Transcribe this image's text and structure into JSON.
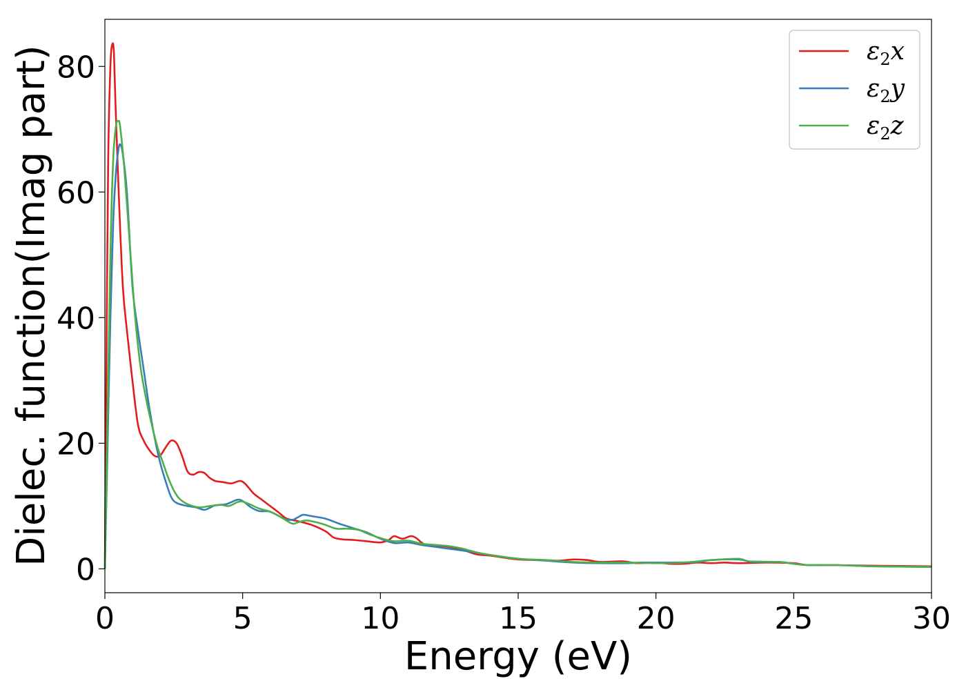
{
  "chart_data": {
    "type": "line",
    "xlabel": "Energy (eV)",
    "ylabel": "Dielec. function(Imag part)",
    "xlim": [
      0,
      30
    ],
    "ylim": [
      -3.8,
      87.5
    ],
    "xticks": [
      0,
      5,
      10,
      15,
      20,
      25,
      30
    ],
    "yticks": [
      0,
      20,
      40,
      60,
      80
    ],
    "grid": false,
    "legend_position": "top-right",
    "series": [
      {
        "name": "ε₂x",
        "legend_base": "ε",
        "legend_sub": "2",
        "legend_var": "x",
        "color": "#e41a1c",
        "points": [
          [
            0,
            0
          ],
          [
            0.05,
            30
          ],
          [
            0.12,
            65
          ],
          [
            0.2,
            80
          ],
          [
            0.27,
            83.5
          ],
          [
            0.33,
            82
          ],
          [
            0.4,
            72
          ],
          [
            0.5,
            60
          ],
          [
            0.65,
            45
          ],
          [
            0.8,
            38
          ],
          [
            1.0,
            30
          ],
          [
            1.2,
            23
          ],
          [
            1.4,
            20.5
          ],
          [
            1.6,
            19
          ],
          [
            1.8,
            18
          ],
          [
            2.0,
            18
          ],
          [
            2.2,
            19.3
          ],
          [
            2.4,
            20.4
          ],
          [
            2.6,
            20
          ],
          [
            2.8,
            18
          ],
          [
            3.0,
            15.5
          ],
          [
            3.2,
            15
          ],
          [
            3.4,
            15.4
          ],
          [
            3.6,
            15.3
          ],
          [
            3.8,
            14.5
          ],
          [
            4.0,
            14
          ],
          [
            4.3,
            13.8
          ],
          [
            4.6,
            13.6
          ],
          [
            4.9,
            14
          ],
          [
            5.1,
            13.5
          ],
          [
            5.4,
            12
          ],
          [
            5.7,
            11
          ],
          [
            6.0,
            10
          ],
          [
            6.3,
            9
          ],
          [
            6.6,
            8
          ],
          [
            7.0,
            7.6
          ],
          [
            7.5,
            7
          ],
          [
            8.0,
            6
          ],
          [
            8.3,
            5
          ],
          [
            8.6,
            4.7
          ],
          [
            9.0,
            4.6
          ],
          [
            9.5,
            4.4
          ],
          [
            10.0,
            4.2
          ],
          [
            10.3,
            4.6
          ],
          [
            10.5,
            5.2
          ],
          [
            10.8,
            4.8
          ],
          [
            11.1,
            5.2
          ],
          [
            11.3,
            4.9
          ],
          [
            11.6,
            3.9
          ],
          [
            12.0,
            3.7
          ],
          [
            12.5,
            3.5
          ],
          [
            13.0,
            3.0
          ],
          [
            13.5,
            2.3
          ],
          [
            14.0,
            2.1
          ],
          [
            15.0,
            1.5
          ],
          [
            16.0,
            1.4
          ],
          [
            16.5,
            1.3
          ],
          [
            17.0,
            1.5
          ],
          [
            17.5,
            1.4
          ],
          [
            18.0,
            1.1
          ],
          [
            18.8,
            1.2
          ],
          [
            19.3,
            0.9
          ],
          [
            20.0,
            1.0
          ],
          [
            20.5,
            0.8
          ],
          [
            21.0,
            0.8
          ],
          [
            21.5,
            1.0
          ],
          [
            22.0,
            0.9
          ],
          [
            22.5,
            1.0
          ],
          [
            23.0,
            0.9
          ],
          [
            24.0,
            1.0
          ],
          [
            25.0,
            0.9
          ],
          [
            25.5,
            0.6
          ],
          [
            26.5,
            0.6
          ],
          [
            28.0,
            0.5
          ],
          [
            30.0,
            0.4
          ]
        ]
      },
      {
        "name": "ε₂y",
        "legend_base": "ε",
        "legend_sub": "2",
        "legend_var": "y",
        "color": "#377eb8",
        "points": [
          [
            0,
            0
          ],
          [
            0.1,
            20
          ],
          [
            0.2,
            40
          ],
          [
            0.3,
            55
          ],
          [
            0.4,
            63
          ],
          [
            0.5,
            67
          ],
          [
            0.57,
            67.5
          ],
          [
            0.65,
            66
          ],
          [
            0.8,
            60
          ],
          [
            1.0,
            45
          ],
          [
            1.2,
            38
          ],
          [
            1.4,
            32
          ],
          [
            1.6,
            26
          ],
          [
            1.8,
            21
          ],
          [
            2.0,
            17
          ],
          [
            2.2,
            14
          ],
          [
            2.4,
            11.5
          ],
          [
            2.6,
            10.5
          ],
          [
            3.0,
            10
          ],
          [
            3.3,
            9.8
          ],
          [
            3.6,
            9.4
          ],
          [
            3.8,
            9.7
          ],
          [
            4.0,
            10.1
          ],
          [
            4.4,
            10.3
          ],
          [
            4.8,
            11
          ],
          [
            5.0,
            10.8
          ],
          [
            5.3,
            9.8
          ],
          [
            5.6,
            9.2
          ],
          [
            6.0,
            9.1
          ],
          [
            6.5,
            8
          ],
          [
            6.8,
            7.8
          ],
          [
            7.0,
            8.2
          ],
          [
            7.2,
            8.6
          ],
          [
            7.5,
            8.4
          ],
          [
            8.0,
            8.0
          ],
          [
            8.5,
            7.2
          ],
          [
            9.0,
            6.5
          ],
          [
            9.5,
            5.8
          ],
          [
            10.0,
            4.8
          ],
          [
            10.5,
            4.1
          ],
          [
            11.0,
            4.2
          ],
          [
            11.5,
            3.8
          ],
          [
            12.0,
            3.5
          ],
          [
            12.5,
            3.2
          ],
          [
            13.0,
            2.9
          ],
          [
            14.0,
            2.2
          ],
          [
            15.0,
            1.6
          ],
          [
            16.0,
            1.3
          ],
          [
            17.0,
            1.0
          ],
          [
            18.0,
            0.9
          ],
          [
            19.0,
            0.9
          ],
          [
            19.5,
            1.0
          ],
          [
            20.5,
            1.0
          ],
          [
            21.5,
            1.1
          ],
          [
            22.0,
            1.4
          ],
          [
            23.0,
            1.5
          ],
          [
            23.5,
            1.1
          ],
          [
            24.5,
            1.1
          ],
          [
            25.0,
            0.8
          ],
          [
            25.5,
            0.6
          ],
          [
            26.5,
            0.6
          ],
          [
            28.0,
            0.4
          ],
          [
            30.0,
            0.3
          ]
        ]
      },
      {
        "name": "ε₂z",
        "legend_base": "ε",
        "legend_sub": "2",
        "legend_var": "z",
        "color": "#4daf4a",
        "points": [
          [
            0,
            0
          ],
          [
            0.1,
            25
          ],
          [
            0.2,
            50
          ],
          [
            0.3,
            65
          ],
          [
            0.4,
            70.5
          ],
          [
            0.48,
            71.3
          ],
          [
            0.55,
            70.5
          ],
          [
            0.7,
            64
          ],
          [
            0.9,
            52
          ],
          [
            1.1,
            40
          ],
          [
            1.3,
            32
          ],
          [
            1.5,
            27
          ],
          [
            1.7,
            23
          ],
          [
            1.9,
            19.5
          ],
          [
            2.1,
            17
          ],
          [
            2.3,
            14.5
          ],
          [
            2.5,
            12.5
          ],
          [
            2.7,
            11.2
          ],
          [
            3.0,
            10.3
          ],
          [
            3.4,
            9.8
          ],
          [
            3.8,
            10
          ],
          [
            4.2,
            10.2
          ],
          [
            4.5,
            10
          ],
          [
            4.8,
            10.6
          ],
          [
            5.0,
            10.7
          ],
          [
            5.3,
            10.2
          ],
          [
            5.6,
            9.6
          ],
          [
            6.0,
            9.1
          ],
          [
            6.4,
            8.2
          ],
          [
            6.8,
            7.2
          ],
          [
            7.0,
            7.4
          ],
          [
            7.3,
            7.7
          ],
          [
            7.7,
            7.4
          ],
          [
            8.0,
            7.0
          ],
          [
            8.4,
            6.4
          ],
          [
            8.8,
            6.4
          ],
          [
            9.2,
            6.2
          ],
          [
            9.6,
            5.5
          ],
          [
            10.0,
            4.9
          ],
          [
            10.5,
            4.4
          ],
          [
            11.0,
            4.5
          ],
          [
            11.5,
            4.0
          ],
          [
            12.0,
            3.8
          ],
          [
            12.5,
            3.6
          ],
          [
            13.0,
            3.2
          ],
          [
            13.5,
            2.6
          ],
          [
            14.0,
            2.2
          ],
          [
            15.0,
            1.6
          ],
          [
            16.0,
            1.4
          ],
          [
            17.0,
            1.1
          ],
          [
            18.0,
            1.0
          ],
          [
            19.0,
            1.0
          ],
          [
            20.0,
            0.9
          ],
          [
            21.0,
            1.0
          ],
          [
            22.0,
            1.4
          ],
          [
            23.0,
            1.6
          ],
          [
            23.4,
            1.2
          ],
          [
            24.5,
            1.1
          ],
          [
            25.0,
            0.8
          ],
          [
            25.5,
            0.6
          ],
          [
            26.5,
            0.6
          ],
          [
            28.0,
            0.4
          ],
          [
            30.0,
            0.3
          ]
        ]
      }
    ]
  }
}
